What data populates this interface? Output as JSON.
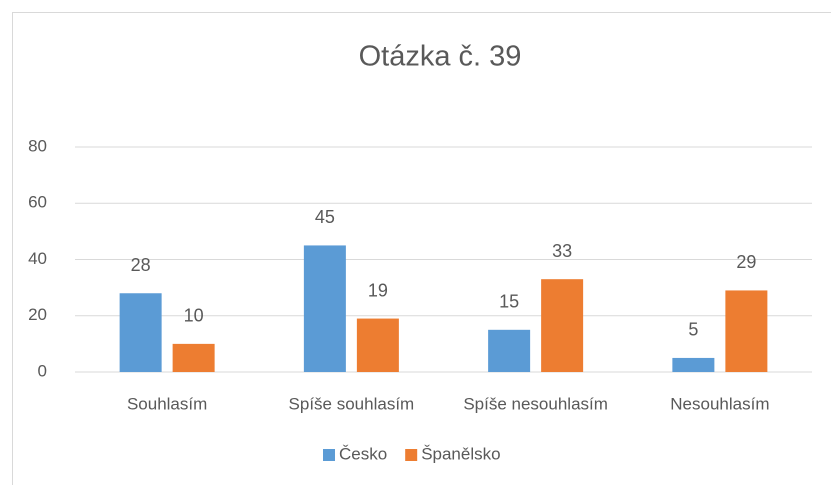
{
  "chart_data": {
    "type": "bar",
    "title": "Otázka č. 39",
    "categories": [
      "Souhlasím",
      "Spíše souhlasím",
      "Spíše nesouhlasím",
      "Nesouhlasím"
    ],
    "series": [
      {
        "name": "Česko",
        "color": "#5b9bd5",
        "values": [
          28,
          45,
          15,
          5
        ]
      },
      {
        "name": "Španělsko",
        "color": "#ed7d31",
        "values": [
          10,
          19,
          33,
          29
        ]
      }
    ],
    "ylim": [
      0,
      80
    ],
    "yticks": [
      0,
      20,
      40,
      60,
      80
    ],
    "grid": true,
    "legend": "bottom"
  }
}
